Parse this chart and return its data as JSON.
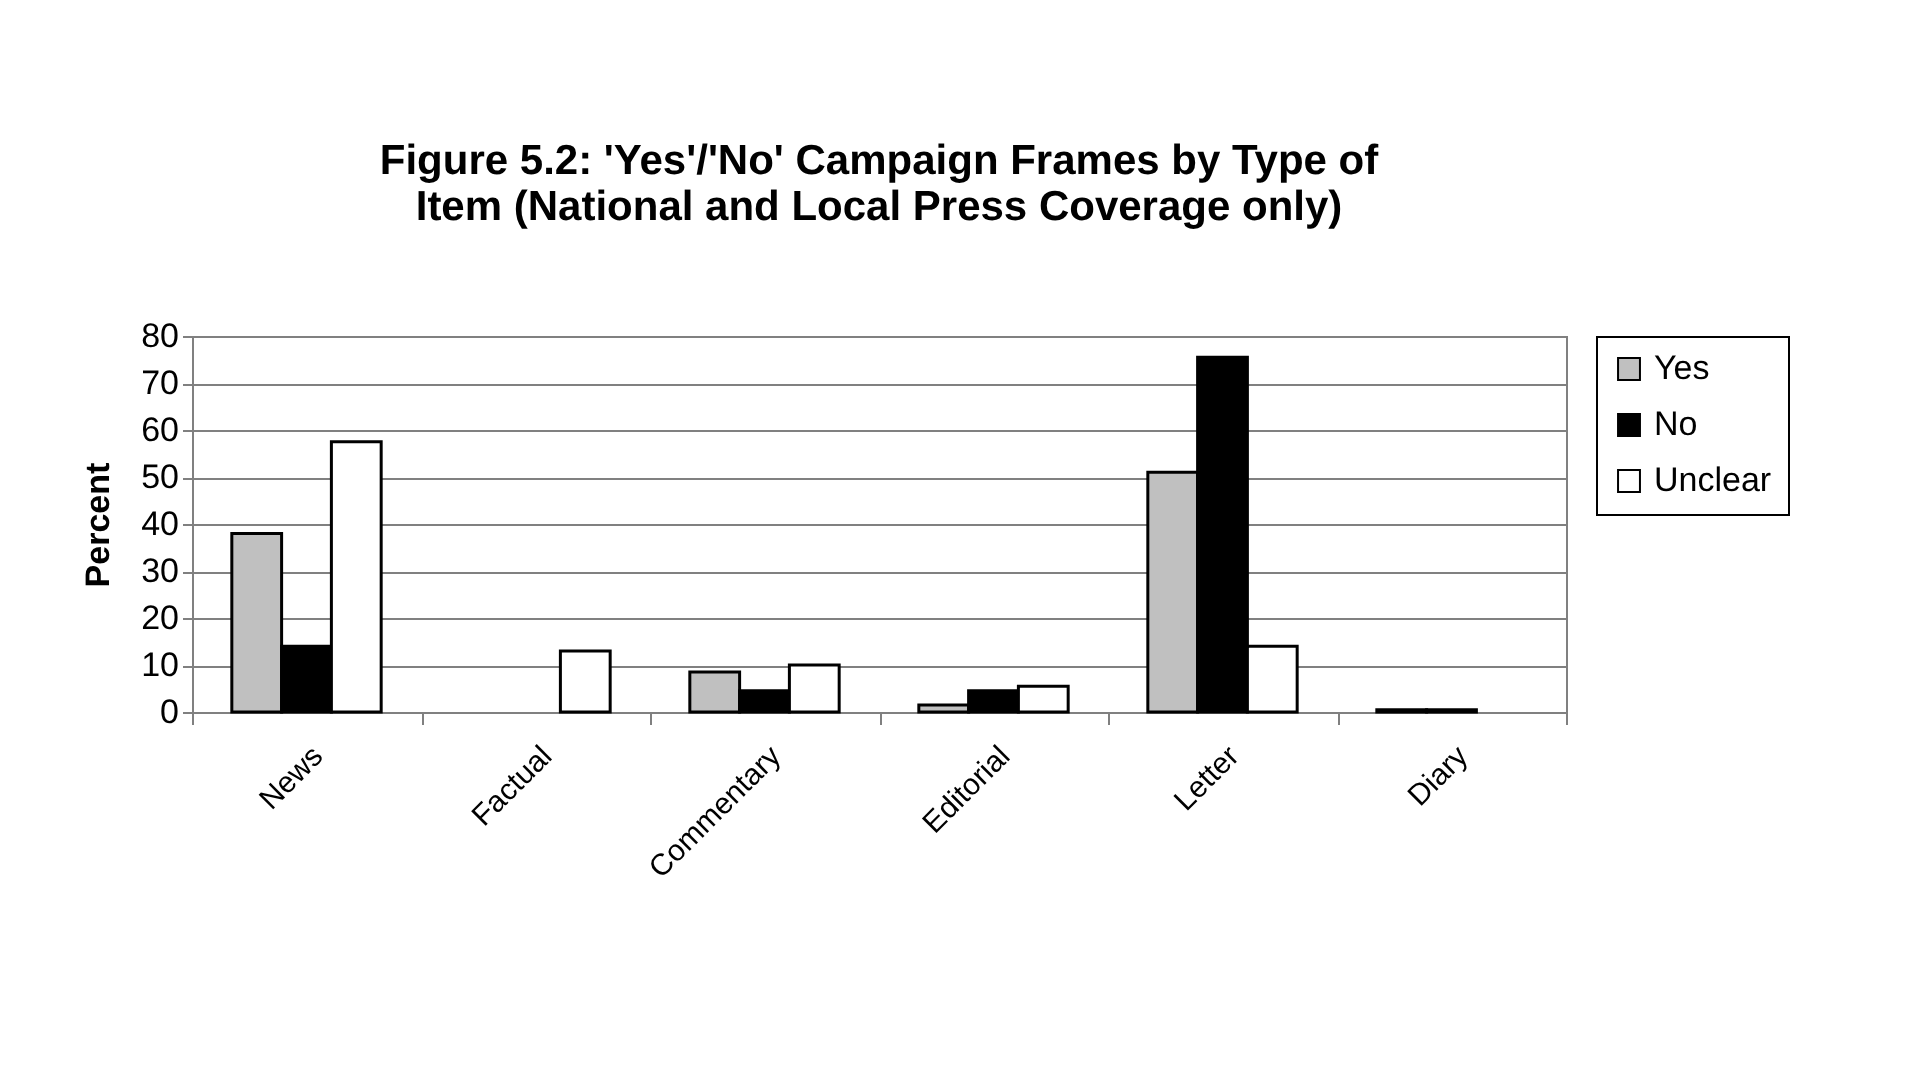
{
  "chart_data": {
    "type": "bar",
    "title": "Figure 5.2: 'Yes'/'No' Campaign Frames by Type of Item (National and Local Press Coverage only)",
    "ylabel": "Percent",
    "categories": [
      "News",
      "Factual",
      "Commentary",
      "Editorial",
      "Letter",
      "Diary"
    ],
    "series": [
      {
        "name": "Yes",
        "color": "#c0c0c0",
        "values": [
          38,
          null,
          8.5,
          1.5,
          51,
          0.5
        ]
      },
      {
        "name": "No",
        "color": "#000000",
        "values": [
          14,
          null,
          4.5,
          4.5,
          75.5,
          0.5
        ]
      },
      {
        "name": "Unclear",
        "color": "#ffffff",
        "values": [
          57.5,
          13,
          10,
          5.5,
          14,
          null
        ]
      }
    ],
    "ylim": [
      0,
      80
    ],
    "yticks": [
      0,
      10,
      20,
      30,
      40,
      50,
      60,
      70,
      80
    ],
    "grid": "y",
    "legend": "right"
  }
}
